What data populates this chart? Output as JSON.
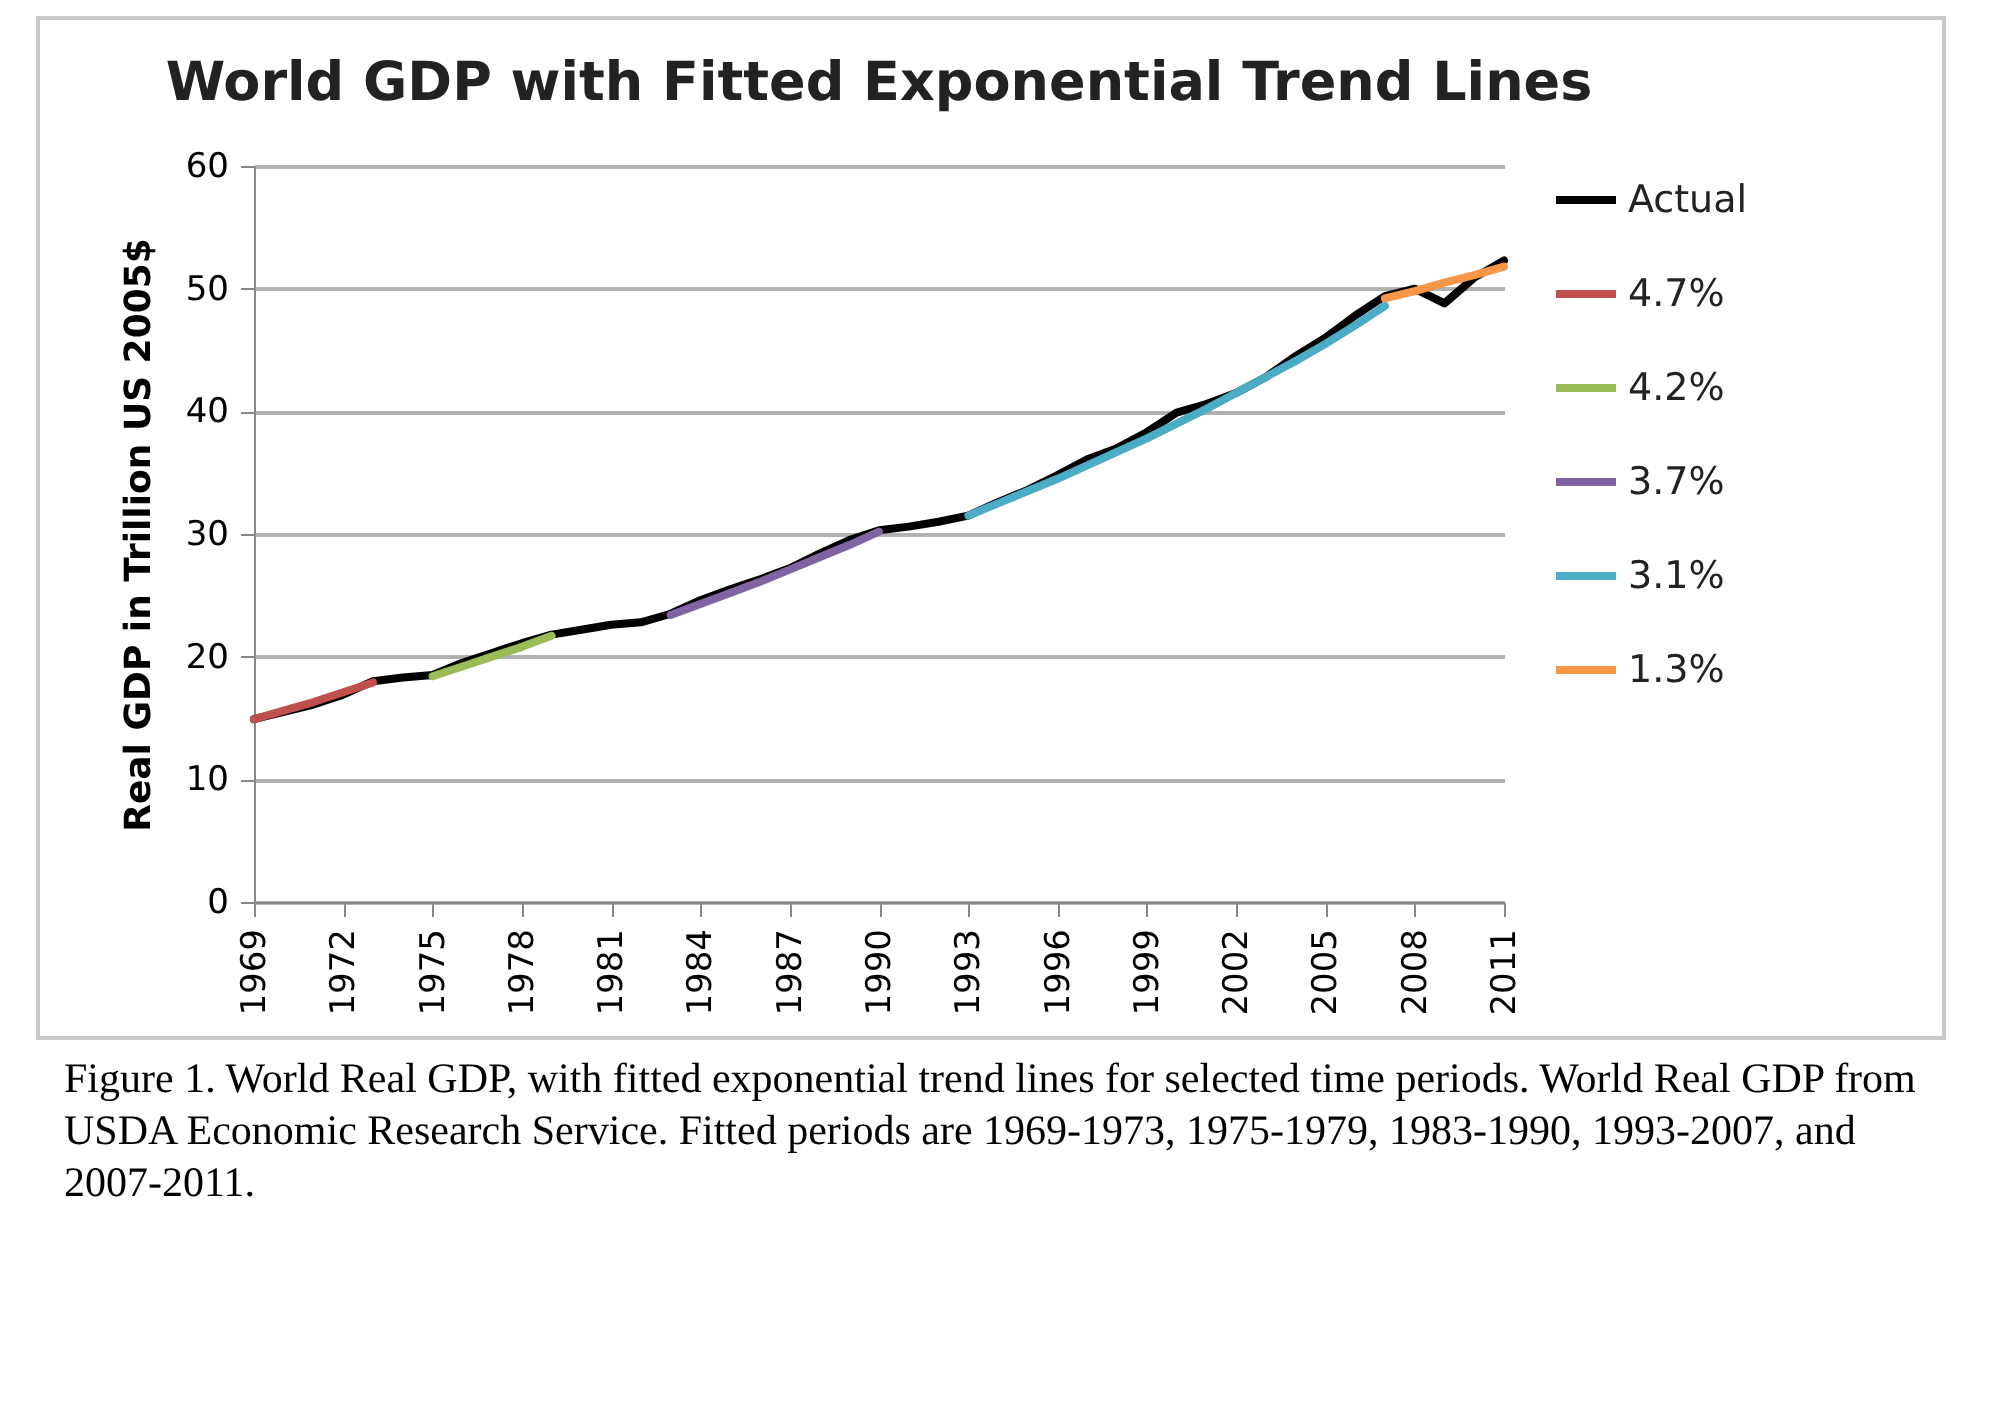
{
  "chart_data": {
    "type": "line",
    "title": "World GDP with Fitted Exponential Trend Lines",
    "ylabel": "Real GDP in Trillion US 2005$",
    "xlim": [
      1969,
      2011
    ],
    "xticks": [
      1969,
      1972,
      1975,
      1978,
      1981,
      1984,
      1987,
      1990,
      1993,
      1996,
      1999,
      2002,
      2005,
      2008,
      2011
    ],
    "ylim": [
      0,
      60
    ],
    "yticks": [
      0,
      10,
      20,
      30,
      40,
      50,
      60
    ],
    "grid": "y",
    "legend": "right",
    "series": [
      {
        "name": "Actual",
        "color": "#000000",
        "x": [
          1969,
          1970,
          1971,
          1972,
          1973,
          1974,
          1975,
          1976,
          1977,
          1978,
          1979,
          1980,
          1981,
          1982,
          1983,
          1984,
          1985,
          1986,
          1987,
          1988,
          1989,
          1990,
          1991,
          1992,
          1993,
          1994,
          1995,
          1996,
          1997,
          1998,
          1999,
          2000,
          2001,
          2002,
          2003,
          2004,
          2005,
          2006,
          2007,
          2008,
          2009,
          2010,
          2011
        ],
        "values": [
          14.9,
          15.5,
          16.1,
          16.9,
          18.0,
          18.3,
          18.5,
          19.5,
          20.3,
          21.1,
          21.8,
          22.2,
          22.6,
          22.8,
          23.5,
          24.6,
          25.5,
          26.3,
          27.2,
          28.4,
          29.5,
          30.3,
          30.6,
          31.0,
          31.5,
          32.6,
          33.6,
          34.8,
          36.1,
          37.0,
          38.3,
          39.9,
          40.6,
          41.5,
          42.8,
          44.5,
          46.0,
          47.8,
          49.4,
          50.0,
          48.8,
          50.9,
          52.3
        ]
      },
      {
        "name": "4.7%",
        "color": "#c0504d",
        "x": [
          1969,
          1970,
          1971,
          1972,
          1973
        ],
        "values": [
          14.9,
          15.6,
          16.3,
          17.1,
          17.9
        ]
      },
      {
        "name": "4.2%",
        "color": "#9bbb59",
        "x": [
          1975,
          1976,
          1977,
          1978,
          1979
        ],
        "values": [
          18.4,
          19.2,
          20.0,
          20.8,
          21.7
        ]
      },
      {
        "name": "3.7%",
        "color": "#8064a2",
        "x": [
          1983,
          1984,
          1985,
          1986,
          1987,
          1988,
          1989,
          1990
        ],
        "values": [
          23.4,
          24.3,
          25.2,
          26.1,
          27.1,
          28.1,
          29.1,
          30.2
        ]
      },
      {
        "name": "3.1%",
        "color": "#4bacc6",
        "x": [
          1993,
          1994,
          1995,
          1996,
          1997,
          1998,
          1999,
          2000,
          2001,
          2002,
          2003,
          2004,
          2005,
          2006,
          2007
        ],
        "values": [
          31.5,
          32.5,
          33.5,
          34.5,
          35.6,
          36.7,
          37.8,
          39.0,
          40.2,
          41.5,
          42.8,
          44.1,
          45.5,
          47.0,
          48.6
        ]
      },
      {
        "name": "1.3%",
        "color": "#f79646",
        "x": [
          2007,
          2008,
          2009,
          2010,
          2011
        ],
        "values": [
          49.2,
          49.8,
          50.5,
          51.1,
          51.8
        ]
      }
    ],
    "annotations": [
      "Figure 1. World Real GDP, with fitted exponential trend lines for selected time periods. World Real GDP from USDA Economic Research Service. Fitted periods are 1969-1973, 1975-1979, 1983-1990, 1993-2007, and 2007-2011."
    ]
  }
}
